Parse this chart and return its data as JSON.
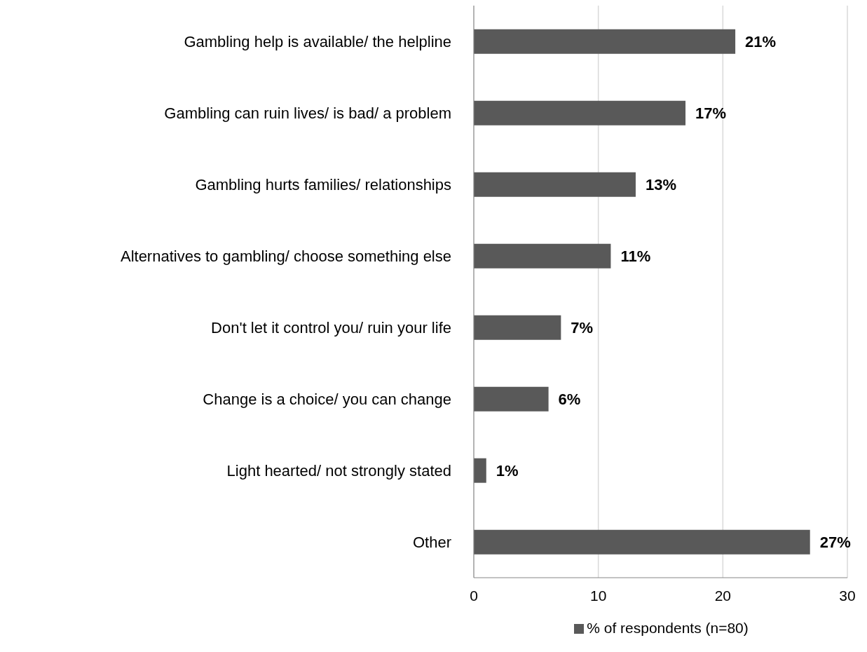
{
  "chart_data": {
    "type": "bar",
    "orientation": "horizontal",
    "categories": [
      "Gambling help is available/ the helpline",
      "Gambling can ruin lives/ is bad/ a problem",
      "Gambling hurts families/ relationships",
      "Alternatives to gambling/ choose something else",
      "Don't let it control you/ ruin your life",
      "Change is a choice/ you can change",
      "Light hearted/ not strongly stated",
      "Other"
    ],
    "series": [
      {
        "name": "% of respondents (n=80)",
        "color": "#595959",
        "values": [
          21,
          17,
          13,
          11,
          7,
          6,
          1,
          27
        ],
        "value_labels": [
          "21%",
          "17%",
          "13%",
          "11%",
          "7%",
          "6%",
          "1%",
          "27%"
        ]
      }
    ],
    "xlim": [
      0,
      30
    ],
    "xticks": [
      0,
      10,
      20,
      30
    ],
    "grid": "x",
    "legend": "bottom"
  }
}
